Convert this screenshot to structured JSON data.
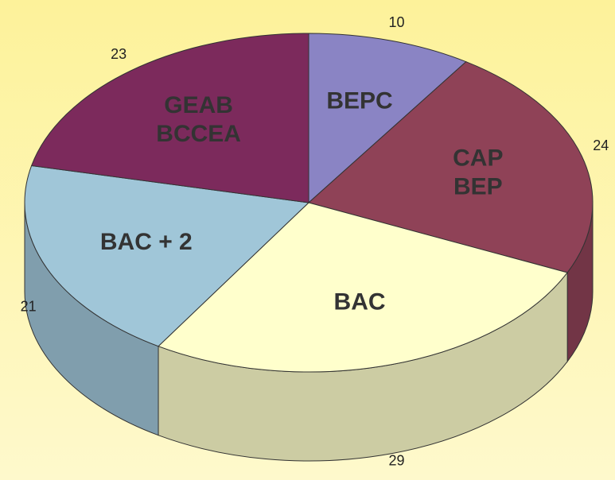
{
  "chart_data": {
    "type": "pie",
    "categories": [
      "BEPC",
      "CAP\nBEP",
      "BAC",
      "BAC + 2",
      "GEAB\nBCCEA"
    ],
    "values": [
      10,
      24,
      29,
      21,
      23
    ],
    "colors": [
      "#8a84c4",
      "#8f4257",
      "#ffffcc",
      "#a0c6d8",
      "#7c2a5c"
    ]
  }
}
